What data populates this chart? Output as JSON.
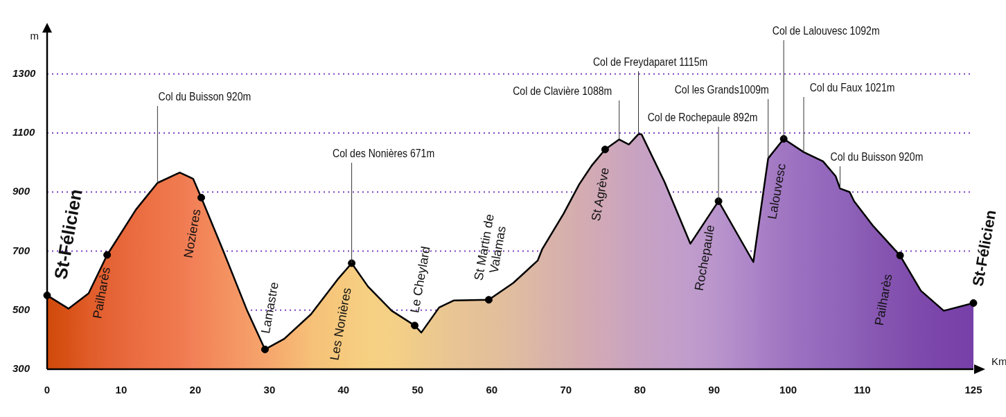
{
  "chart_data": {
    "type": "area",
    "xlabel": "Km",
    "ylabel": "m",
    "xlim": [
      0,
      125
    ],
    "xticks": [
      0,
      10,
      20,
      30,
      40,
      50,
      60,
      70,
      80,
      90,
      100,
      110,
      125
    ],
    "ylim": [
      300,
      1440
    ],
    "yticks": [
      300,
      500,
      700,
      900,
      1100,
      1300
    ],
    "grid": "y",
    "legend": false,
    "marker": "none",
    "x": [
      0,
      2.9,
      5.6,
      8.1,
      12,
      14.9,
      17.9,
      19.7,
      20.8,
      23.8,
      27,
      29.4,
      32,
      35.6,
      39.2,
      41.1,
      43.3,
      46.5,
      49.6,
      50.5,
      52.9,
      54.9,
      59.6,
      62.9,
      66.2,
      66.8,
      69.7,
      71.8,
      73.5,
      75.3,
      77.2,
      78.5,
      79.8,
      80.2,
      83.3,
      86.8,
      90.6,
      95.3,
      97.3,
      99.4,
      102.1,
      104.7,
      106.4,
      107,
      108.3,
      108.9,
      111.5,
      115.1,
      117.9,
      121,
      125
    ],
    "series": [
      {
        "type": "area",
        "color": "#000000",
        "values": [
          550,
          505,
          557,
          687,
          841,
          931,
          966,
          945,
          881,
          699,
          498,
          367,
          403,
          486,
          604,
          659,
          580,
          498,
          448,
          424,
          509,
          533,
          535,
          592,
          668,
          706,
          827,
          926,
          990,
          1044,
          1078,
          1061,
          1096,
          1096,
          935,
          725,
          869,
          663,
          1014,
          1080,
          1035,
          1004,
          954,
          912,
          900,
          869,
          784,
          685,
          566,
          498,
          524
        ],
        "colors": [
          "#d04a0a",
          "#d85218",
          "#e05c28",
          "#e46234",
          "#ea6c40",
          "#ee7448",
          "#f07a50",
          "#f28058",
          "#f28458",
          "#f49060",
          "#f59c68",
          "#f6a46c",
          "#f6b070",
          "#f6c078",
          "#f6c87c",
          "#f6cc80",
          "#f6d082",
          "#f4d086",
          "#f0cc8a",
          "#eeca8c",
          "#eac890",
          "#e8c494",
          "#e4c09a",
          "#e0bca0",
          "#dcb6a6",
          "#dab4a8",
          "#d6b0ac",
          "#d4acb0",
          "#d2aab4",
          "#d0a8b8",
          "#cca6bc",
          "#caa4be",
          "#c8a2c2",
          "#c8a2c2",
          "#c4a0c8",
          "#c09ccc",
          "#b894cc",
          "#ac84c8",
          "#a67cc4",
          "#a076c2",
          "#9a6ec0",
          "#9468bc",
          "#9266ba",
          "#9064ba",
          "#8e62b8",
          "#8c60b6",
          "#8858b2",
          "#8250ae",
          "#7e4aac",
          "#7a44aa",
          "#7640a8"
        ]
      },
      {
        "type": "scatter",
        "marker": "circle",
        "color": "#000000",
        "x": [
          0,
          8.1,
          20.8,
          29.4,
          41.1,
          49.6,
          59.6,
          75.3,
          90.6,
          99.4,
          115.1,
          125
        ],
        "values": [
          550,
          687,
          881,
          367,
          659,
          448,
          535,
          1044,
          869,
          1080,
          685,
          524
        ]
      }
    ],
    "annotations": [
      {
        "text": "St-Félicien",
        "x": 0,
        "y": 550
      },
      {
        "text": "Pailharès",
        "x": 8.1,
        "y": 687
      },
      {
        "text": "Nozieres",
        "x": 20.8,
        "y": 881
      },
      {
        "text": "Lamastre",
        "x": 29.4,
        "y": 367
      },
      {
        "text": "Les Nonières",
        "x": 41.1,
        "y": 659
      },
      {
        "text": "Le Cheylard",
        "x": 49.6,
        "y": 448
      },
      {
        "text": "St Martin de\nValamas",
        "x": 59.6,
        "y": 535
      },
      {
        "text": "St Agrève",
        "x": 75.3,
        "y": 1044
      },
      {
        "text": "Rochepaule",
        "x": 90.6,
        "y": 869
      },
      {
        "text": "Lalouvesc",
        "x": 99.4,
        "y": 1080
      },
      {
        "text": "Pailharès",
        "x": 115.1,
        "y": 685
      },
      {
        "text": "St-Félicien",
        "x": 125,
        "y": 524
      },
      {
        "text": "Col du Buisson 920m",
        "x": 14.9,
        "y": 931
      },
      {
        "text": "Col des Nonières 671m",
        "x": 41.1,
        "y": 659
      },
      {
        "text": "Col de Clavière 1088m",
        "x": 77.2,
        "y": 1078
      },
      {
        "text": "Col de Freydaparet 1115m",
        "x": 79.8,
        "y": 1096
      },
      {
        "text": "Col de Rochepaule 892m",
        "x": 90.6,
        "y": 869
      },
      {
        "text": "Col les Grands1009m",
        "x": 97.3,
        "y": 1014
      },
      {
        "text": "Col de Lalouvesc 1092m",
        "x": 99.4,
        "y": 1080
      },
      {
        "text": "Col du Faux 1021m",
        "x": 102.1,
        "y": 1035
      },
      {
        "text": "Col du Buisson 920m",
        "x": 107,
        "y": 912
      }
    ]
  }
}
